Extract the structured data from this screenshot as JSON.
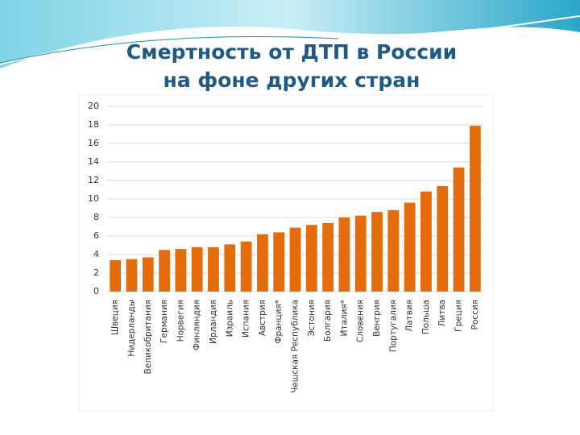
{
  "chart_data": {
    "type": "bar",
    "title": [
      "Смертность от ДТП в России",
      "на фоне других стран"
    ],
    "categories": [
      "Швеция",
      "Нидерланды",
      "Великобритания",
      "Германия",
      "Норвегия",
      "Финляндия",
      "Ирландия",
      "Израиль",
      "Испания",
      "Австрия",
      "Франция*",
      "Чешская Республика",
      "Эстония",
      "Болгария",
      "Италия*",
      "Словения",
      "Венгрия",
      "Португалия",
      "Латвия",
      "Польша",
      "Литва",
      "Греция",
      "Россия"
    ],
    "values": [
      3.4,
      3.5,
      3.7,
      4.5,
      4.6,
      4.8,
      4.8,
      5.1,
      5.4,
      6.2,
      6.4,
      6.9,
      7.2,
      7.4,
      8.0,
      8.2,
      8.6,
      8.8,
      9.6,
      10.8,
      11.4,
      13.4,
      17.9
    ],
    "color": "#e46c0a",
    "ylim": [
      0,
      20
    ],
    "yticks": [
      0,
      2,
      4,
      6,
      8,
      10,
      12,
      14,
      16,
      18,
      20
    ],
    "grid": true
  }
}
